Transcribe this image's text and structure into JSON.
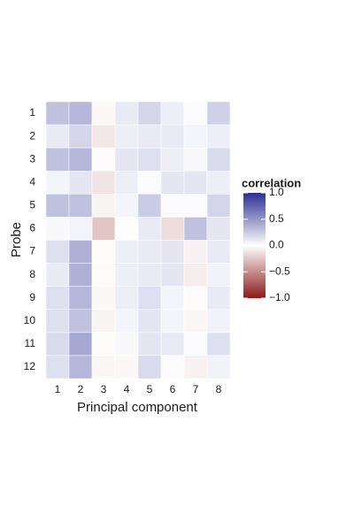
{
  "chart_data": {
    "type": "heatmap",
    "x_label": "Principal component",
    "y_label": "Probe",
    "x": [
      "1",
      "2",
      "3",
      "4",
      "5",
      "6",
      "7",
      "8"
    ],
    "y": [
      "1",
      "2",
      "3",
      "4",
      "5",
      "6",
      "7",
      "8",
      "9",
      "10",
      "11",
      "12"
    ],
    "values": [
      [
        0.3,
        0.35,
        -0.03,
        0.1,
        0.2,
        0.08,
        0.02,
        0.22
      ],
      [
        0.1,
        0.2,
        -0.1,
        0.08,
        0.1,
        0.1,
        0.05,
        0.08
      ],
      [
        0.3,
        0.35,
        -0.02,
        0.12,
        0.15,
        0.08,
        0.03,
        0.18
      ],
      [
        0.05,
        0.12,
        -0.12,
        0.08,
        0.02,
        0.12,
        0.12,
        0.08
      ],
      [
        0.3,
        0.3,
        -0.05,
        0.05,
        0.25,
        0.02,
        0.02,
        0.2
      ],
      [
        0.03,
        0.05,
        -0.25,
        0.01,
        0.1,
        -0.15,
        0.3,
        0.12
      ],
      [
        0.15,
        0.38,
        -0.02,
        0.08,
        0.1,
        0.12,
        -0.06,
        0.1
      ],
      [
        0.1,
        0.38,
        -0.02,
        0.08,
        0.1,
        0.12,
        -0.08,
        0.06
      ],
      [
        0.15,
        0.35,
        -0.03,
        0.08,
        0.15,
        0.05,
        -0.02,
        0.1
      ],
      [
        0.15,
        0.3,
        -0.05,
        0.05,
        0.12,
        0.05,
        -0.04,
        0.06
      ],
      [
        0.18,
        0.42,
        -0.02,
        0.03,
        0.12,
        0.1,
        0.02,
        0.15
      ],
      [
        0.15,
        0.35,
        -0.04,
        -0.03,
        0.18,
        0.02,
        -0.06,
        0.06
      ]
    ],
    "legend_title": "correlation",
    "clim": [
      -1,
      1
    ],
    "cticks": [
      {
        "value": 1,
        "label": "1.0"
      },
      0.5,
      {
        "value": 0,
        "label": "0.0"
      },
      {
        "value": -0.5,
        "label": "−0.5"
      },
      {
        "value": -1,
        "label": "−1.0"
      }
    ],
    "colors": [
      "#8b1a1a",
      "#ffffff",
      "#2b2f91"
    ]
  }
}
